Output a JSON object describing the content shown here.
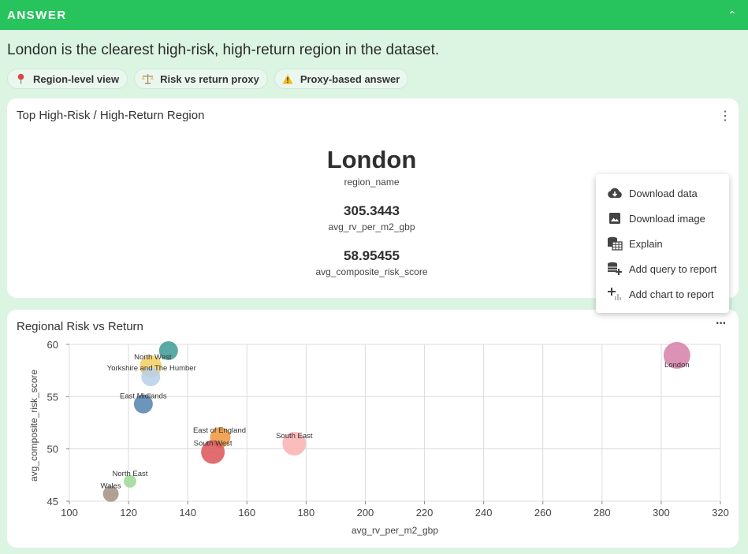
{
  "header": {
    "title": "ANSWER",
    "collapse_icon": "chevron-up-icon"
  },
  "headline": "London is the clearest high-risk, high-return region in the dataset.",
  "chips": [
    {
      "icon": "pin-icon",
      "label": "Region-level view"
    },
    {
      "icon": "balance-icon",
      "label": "Risk vs return proxy"
    },
    {
      "icon": "warning-icon",
      "label": "Proxy-based answer"
    }
  ],
  "kpi_card": {
    "title": "Top High-Risk / High-Return Region",
    "main_value": "London",
    "main_label": "region_name",
    "metric1_value": "305.3443",
    "metric1_label": "avg_rv_per_m2_gbp",
    "metric2_value": "58.95455",
    "metric2_label": "avg_composite_risk_score"
  },
  "menu": {
    "items": [
      {
        "icon": "cloud-download-icon",
        "label": "Download data"
      },
      {
        "icon": "image-icon",
        "label": "Download image"
      },
      {
        "icon": "table-icon",
        "label": "Explain"
      },
      {
        "icon": "add-query-icon",
        "label": "Add query to report"
      },
      {
        "icon": "add-chart-icon",
        "label": "Add chart to report"
      }
    ]
  },
  "chart_card": {
    "title": "Regional Risk vs Return"
  },
  "chart_data": {
    "type": "scatter",
    "title": "",
    "xlabel": "avg_rv_per_m2_gbp",
    "ylabel": "avg_composite_risk_score",
    "xlim": [
      100,
      320
    ],
    "ylim": [
      45,
      60
    ],
    "xticks": [
      100,
      120,
      140,
      160,
      180,
      200,
      220,
      240,
      260,
      280,
      300,
      320
    ],
    "yticks": [
      45,
      50,
      55,
      60
    ],
    "grid": true,
    "points": [
      {
        "label": "London",
        "x": 305.3,
        "y": 58.95,
        "color": "#d57fa8"
      },
      {
        "label": "North West",
        "x": 133.5,
        "y": 59.4,
        "color": "#3e9a94"
      },
      {
        "label": "",
        "x": 127.5,
        "y": 57.9,
        "color": "#f2cf63"
      },
      {
        "label": "Yorkshire and The Humber",
        "x": 127.5,
        "y": 56.9,
        "color": "#b7d0ea"
      },
      {
        "label": "East Midlands",
        "x": 125,
        "y": 54.3,
        "color": "#5483ad"
      },
      {
        "label": "East of England",
        "x": 151,
        "y": 51.1,
        "color": "#f0953c"
      },
      {
        "label": "South West",
        "x": 148.5,
        "y": 49.7,
        "color": "#db5558"
      },
      {
        "label": "South East",
        "x": 176,
        "y": 50.5,
        "color": "#f9b2b0"
      },
      {
        "label": "North East",
        "x": 120.5,
        "y": 46.9,
        "color": "#9bd993"
      },
      {
        "label": "Wales",
        "x": 114,
        "y": 45.7,
        "color": "#a39183"
      }
    ]
  }
}
